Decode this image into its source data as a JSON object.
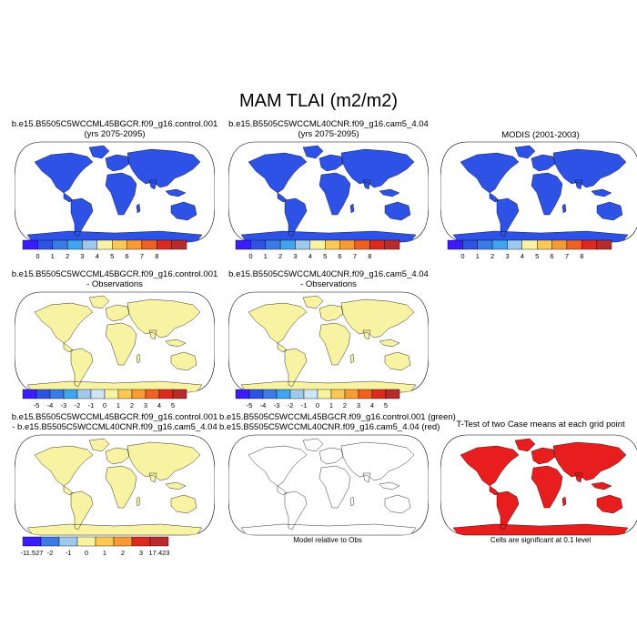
{
  "title": "MAM TLAI (m2/m2)",
  "colors": {
    "abs": [
      "#3b1bff",
      "#2e52e6",
      "#3c7ae8",
      "#41a4f0",
      "#9ec9ec",
      "#f8f3a2",
      "#fcc954",
      "#f79b32",
      "#f06020",
      "#de2a1e",
      "#b92b2b"
    ],
    "diff": [
      "#3b1bff",
      "#2e52e6",
      "#3c7ae8",
      "#41a4f0",
      "#9ec9ec",
      "#cfe4f4",
      "#f8f3a2",
      "#fcc954",
      "#f79b32",
      "#f06020",
      "#de2a1e",
      "#b92b2b"
    ],
    "ocean": "#ffffff",
    "coast": "#000000"
  },
  "panels": [
    {
      "id": "p1",
      "title": [
        "b.e15.B5505C5WCCML45BGCR.f09_g16.control.001",
        "(yrs 2075-2095)"
      ],
      "palette": "abs-model"
    },
    {
      "id": "p2",
      "title": [
        "b.e15.B5505C5WCCML40CNR.f09_g16.cam5_4.04",
        "(yrs 2075-2095)"
      ],
      "palette": "abs-model"
    },
    {
      "id": "p3",
      "title": [
        "MODIS (2001-2003)"
      ],
      "palette": "abs-obs"
    },
    {
      "id": "p4",
      "title": [
        "b.e15.B5505C5WCCML45BGCR.f09_g16.control.001",
        "- Observations"
      ],
      "palette": "diff-obs"
    },
    {
      "id": "p5",
      "title": [
        "b.e15.B5505C5WCCML40CNR.f09_g16.cam5_4.04",
        "- Observations"
      ],
      "palette": "diff-obs"
    },
    {
      "id": "p6",
      "title": [
        "b.e15.B5505C5WCCML45BGCR.f09_g16.control.001",
        "- b.e15.B5505C5WCCML40CNR.f09_g16.cam5_4.04"
      ],
      "palette": "case-diff"
    },
    {
      "id": "p7",
      "title": [
        "b.e15.B5505C5WCCML45BGCR.f09_g16.control.001 (green)",
        "b.e15.B5505C5WCCML40CNR.f09_g16.cam5_4.04 (red)"
      ],
      "palette": "green-red",
      "note": "Model relative to Obs"
    },
    {
      "id": "p8",
      "title": [
        "T-Test of two Case means at each grid point"
      ],
      "palette": "ttest",
      "note": "Cells are significant at 0.1 level"
    }
  ],
  "colorbars": [
    {
      "id": "cb1",
      "labels": [
        "0",
        "1",
        "2",
        "3",
        "4",
        "5",
        "6",
        "7",
        "8"
      ],
      "palette": "abs"
    },
    {
      "id": "cb2",
      "labels": [
        "0",
        "1",
        "2",
        "3",
        "4",
        "5",
        "6",
        "7",
        "8"
      ],
      "palette": "abs"
    },
    {
      "id": "cb3",
      "labels": [
        "0",
        "1",
        "2",
        "3",
        "4",
        "5",
        "6",
        "7",
        "8"
      ],
      "palette": "abs"
    },
    {
      "id": "cb4",
      "labels": [
        "-5",
        "-4",
        "-3",
        "-2",
        "-1",
        "0",
        "1",
        "2",
        "3",
        "4",
        "5"
      ],
      "palette": "diff"
    },
    {
      "id": "cb5",
      "labels": [
        "-5",
        "-4",
        "-3",
        "-2",
        "-1",
        "0",
        "1",
        "2",
        "3",
        "4",
        "5"
      ],
      "palette": "diff"
    },
    {
      "id": "cb6",
      "labels": [
        "-11.527",
        "-2",
        "-1",
        "0",
        "1",
        "2",
        "3",
        "17.423"
      ],
      "palette": "case"
    }
  ]
}
